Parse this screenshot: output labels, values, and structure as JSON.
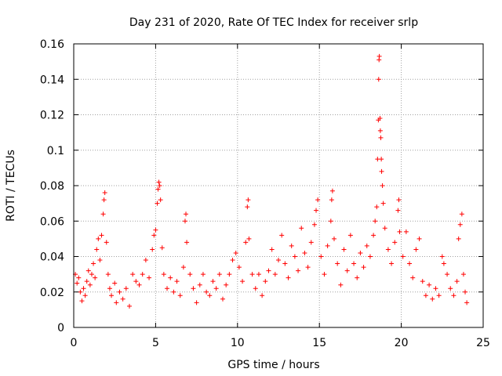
{
  "chart_data": {
    "type": "scatter",
    "title": "Day 231 of 2020, Rate Of TEC Index for receiver srlp",
    "xlabel": "GPS time / hours",
    "ylabel": "ROTI / TECUs",
    "xlim": [
      0,
      25
    ],
    "ylim": [
      0,
      0.16
    ],
    "xticks": [
      0,
      5,
      10,
      15,
      20,
      25
    ],
    "yticks": [
      0,
      0.02,
      0.04,
      0.06,
      0.08,
      0.1,
      0.12,
      0.14,
      0.16
    ],
    "xtick_labels": [
      "0",
      "5",
      "10",
      "15",
      "20",
      "25"
    ],
    "ytick_labels": [
      "0",
      "0.02",
      "0.04",
      "0.06",
      "0.08",
      "0.1",
      "0.12",
      "0.14",
      "0.16"
    ],
    "grid": true,
    "marker": "+",
    "color": "#ff0000",
    "series": [
      {
        "name": "ROTI",
        "points": [
          [
            0.1,
            0.03
          ],
          [
            0.2,
            0.025
          ],
          [
            0.3,
            0.028
          ],
          [
            0.4,
            0.02
          ],
          [
            0.5,
            0.015
          ],
          [
            0.6,
            0.022
          ],
          [
            0.7,
            0.018
          ],
          [
            0.8,
            0.026
          ],
          [
            0.9,
            0.032
          ],
          [
            1.0,
            0.024
          ],
          [
            1.1,
            0.03
          ],
          [
            1.2,
            0.036
          ],
          [
            1.3,
            0.028
          ],
          [
            1.4,
            0.044
          ],
          [
            1.5,
            0.05
          ],
          [
            1.6,
            0.038
          ],
          [
            1.7,
            0.052
          ],
          [
            1.8,
            0.064
          ],
          [
            1.85,
            0.072
          ],
          [
            1.9,
            0.076
          ],
          [
            2.0,
            0.048
          ],
          [
            2.1,
            0.03
          ],
          [
            2.2,
            0.022
          ],
          [
            2.3,
            0.018
          ],
          [
            2.5,
            0.025
          ],
          [
            2.6,
            0.014
          ],
          [
            2.8,
            0.02
          ],
          [
            3.0,
            0.016
          ],
          [
            3.2,
            0.022
          ],
          [
            3.4,
            0.012
          ],
          [
            3.6,
            0.03
          ],
          [
            3.8,
            0.026
          ],
          [
            4.0,
            0.024
          ],
          [
            4.2,
            0.03
          ],
          [
            4.4,
            0.038
          ],
          [
            4.6,
            0.028
          ],
          [
            4.8,
            0.044
          ],
          [
            4.9,
            0.052
          ],
          [
            5.0,
            0.055
          ],
          [
            5.1,
            0.07
          ],
          [
            5.15,
            0.078
          ],
          [
            5.2,
            0.082
          ],
          [
            5.25,
            0.08
          ],
          [
            5.3,
            0.072
          ],
          [
            5.4,
            0.045
          ],
          [
            5.5,
            0.03
          ],
          [
            5.7,
            0.022
          ],
          [
            5.9,
            0.028
          ],
          [
            6.1,
            0.02
          ],
          [
            6.3,
            0.026
          ],
          [
            6.5,
            0.018
          ],
          [
            6.7,
            0.034
          ],
          [
            6.8,
            0.06
          ],
          [
            6.85,
            0.064
          ],
          [
            6.9,
            0.048
          ],
          [
            7.1,
            0.03
          ],
          [
            7.3,
            0.022
          ],
          [
            7.5,
            0.014
          ],
          [
            7.7,
            0.024
          ],
          [
            7.9,
            0.03
          ],
          [
            8.1,
            0.02
          ],
          [
            8.3,
            0.018
          ],
          [
            8.5,
            0.026
          ],
          [
            8.7,
            0.022
          ],
          [
            8.9,
            0.03
          ],
          [
            9.1,
            0.016
          ],
          [
            9.3,
            0.024
          ],
          [
            9.5,
            0.03
          ],
          [
            9.7,
            0.038
          ],
          [
            9.9,
            0.042
          ],
          [
            10.1,
            0.034
          ],
          [
            10.3,
            0.026
          ],
          [
            10.5,
            0.048
          ],
          [
            10.6,
            0.068
          ],
          [
            10.65,
            0.072
          ],
          [
            10.7,
            0.05
          ],
          [
            10.9,
            0.03
          ],
          [
            11.1,
            0.022
          ],
          [
            11.3,
            0.03
          ],
          [
            11.5,
            0.018
          ],
          [
            11.7,
            0.026
          ],
          [
            11.9,
            0.032
          ],
          [
            12.1,
            0.044
          ],
          [
            12.3,
            0.03
          ],
          [
            12.5,
            0.038
          ],
          [
            12.7,
            0.052
          ],
          [
            12.9,
            0.036
          ],
          [
            13.1,
            0.028
          ],
          [
            13.3,
            0.046
          ],
          [
            13.5,
            0.04
          ],
          [
            13.7,
            0.032
          ],
          [
            13.9,
            0.056
          ],
          [
            14.1,
            0.042
          ],
          [
            14.3,
            0.034
          ],
          [
            14.5,
            0.048
          ],
          [
            14.7,
            0.058
          ],
          [
            14.8,
            0.066
          ],
          [
            14.9,
            0.072
          ],
          [
            15.1,
            0.04
          ],
          [
            15.3,
            0.03
          ],
          [
            15.5,
            0.046
          ],
          [
            15.7,
            0.06
          ],
          [
            15.75,
            0.072
          ],
          [
            15.8,
            0.077
          ],
          [
            15.9,
            0.05
          ],
          [
            16.1,
            0.036
          ],
          [
            16.3,
            0.024
          ],
          [
            16.5,
            0.044
          ],
          [
            16.7,
            0.032
          ],
          [
            16.9,
            0.052
          ],
          [
            17.1,
            0.036
          ],
          [
            17.3,
            0.028
          ],
          [
            17.5,
            0.042
          ],
          [
            17.7,
            0.034
          ],
          [
            17.9,
            0.046
          ],
          [
            18.1,
            0.04
          ],
          [
            18.3,
            0.052
          ],
          [
            18.4,
            0.06
          ],
          [
            18.5,
            0.068
          ],
          [
            18.55,
            0.095
          ],
          [
            18.6,
            0.117
          ],
          [
            18.62,
            0.14
          ],
          [
            18.64,
            0.151
          ],
          [
            18.66,
            0.153
          ],
          [
            18.7,
            0.118
          ],
          [
            18.72,
            0.111
          ],
          [
            18.75,
            0.107
          ],
          [
            18.78,
            0.095
          ],
          [
            18.8,
            0.088
          ],
          [
            18.85,
            0.08
          ],
          [
            18.9,
            0.07
          ],
          [
            19.0,
            0.056
          ],
          [
            19.2,
            0.044
          ],
          [
            19.4,
            0.036
          ],
          [
            19.6,
            0.048
          ],
          [
            19.8,
            0.066
          ],
          [
            19.85,
            0.072
          ],
          [
            19.9,
            0.054
          ],
          [
            20.1,
            0.04
          ],
          [
            20.3,
            0.054
          ],
          [
            20.5,
            0.036
          ],
          [
            20.7,
            0.028
          ],
          [
            20.9,
            0.044
          ],
          [
            21.1,
            0.05
          ],
          [
            21.3,
            0.026
          ],
          [
            21.5,
            0.018
          ],
          [
            21.7,
            0.024
          ],
          [
            21.9,
            0.016
          ],
          [
            22.1,
            0.022
          ],
          [
            22.3,
            0.018
          ],
          [
            22.5,
            0.04
          ],
          [
            22.6,
            0.036
          ],
          [
            22.8,
            0.03
          ],
          [
            23.0,
            0.022
          ],
          [
            23.2,
            0.018
          ],
          [
            23.4,
            0.026
          ],
          [
            23.5,
            0.05
          ],
          [
            23.6,
            0.058
          ],
          [
            23.7,
            0.064
          ],
          [
            23.8,
            0.03
          ],
          [
            23.9,
            0.02
          ],
          [
            24.0,
            0.014
          ]
        ]
      }
    ]
  }
}
